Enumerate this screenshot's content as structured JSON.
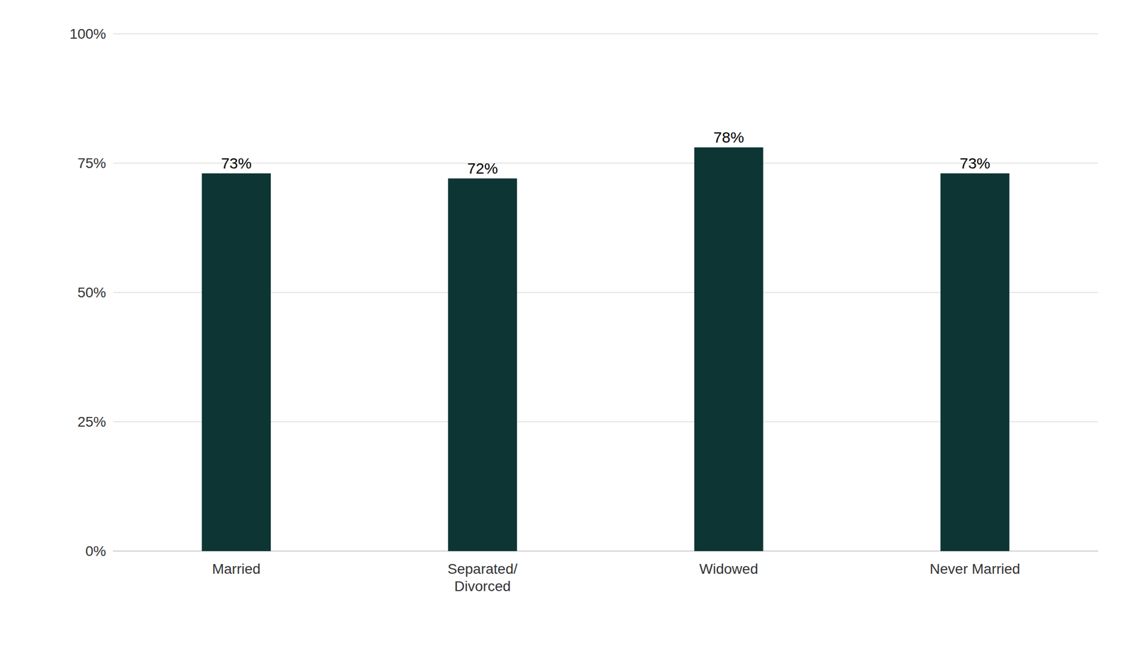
{
  "chart_data": {
    "type": "bar",
    "categories": [
      "Married",
      "Separated/\nDivorced",
      "Widowed",
      "Never Married"
    ],
    "values": [
      73,
      72,
      78,
      73
    ],
    "value_labels": [
      "73%",
      "72%",
      "78%",
      "73%"
    ],
    "data_labels": true,
    "color": "#0d3533",
    "ylim": [
      0,
      100
    ],
    "yticks": [
      {
        "value": 0,
        "label": "0%"
      },
      {
        "value": 25,
        "label": "25%"
      },
      {
        "value": 50,
        "label": "50%"
      },
      {
        "value": 75,
        "label": "75%"
      },
      {
        "value": 100,
        "label": "100%"
      }
    ],
    "grid": true
  }
}
